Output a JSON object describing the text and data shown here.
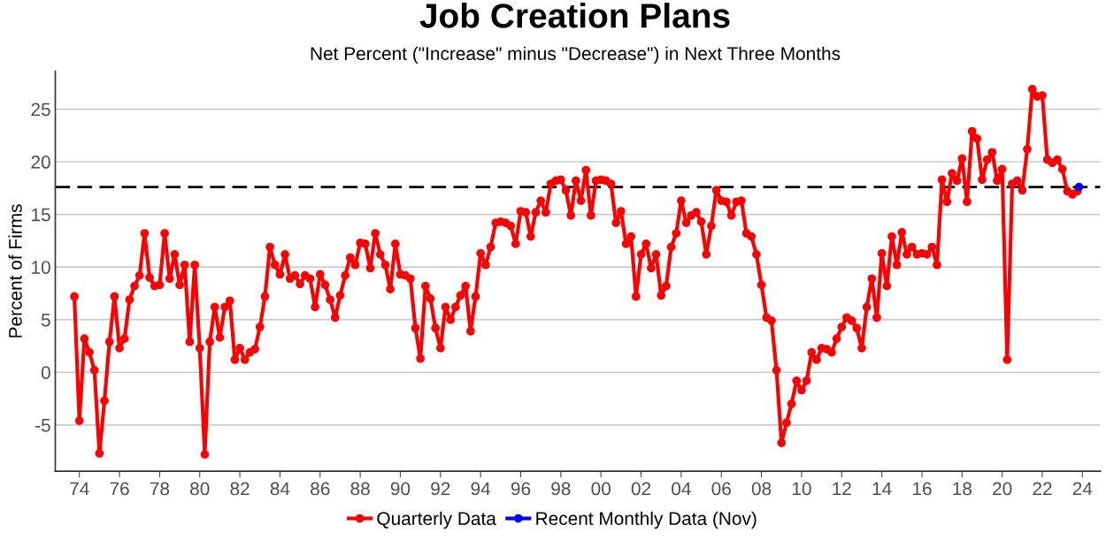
{
  "chart_data": {
    "type": "line",
    "title": "Job Creation Plans",
    "subtitle": "Net Percent (\"Increase\" minus \"Decrease\") in Next Three Months",
    "ylabel": "Percent of Firms",
    "x": [
      1973.75,
      1974.0,
      1974.25,
      1974.5,
      1974.75,
      1975.0,
      1975.25,
      1975.5,
      1975.75,
      1976.0,
      1976.25,
      1976.5,
      1976.75,
      1977.0,
      1977.25,
      1977.5,
      1977.75,
      1978.0,
      1978.25,
      1978.5,
      1978.75,
      1979.0,
      1979.25,
      1979.5,
      1979.75,
      1980.0,
      1980.25,
      1980.5,
      1980.75,
      1981.0,
      1981.25,
      1981.5,
      1981.75,
      1982.0,
      1982.25,
      1982.5,
      1982.75,
      1983.0,
      1983.25,
      1983.5,
      1983.75,
      1984.0,
      1984.25,
      1984.5,
      1984.75,
      1985.0,
      1985.25,
      1985.5,
      1985.75,
      1986.0,
      1986.25,
      1986.5,
      1986.75,
      1987.0,
      1987.25,
      1987.5,
      1987.75,
      1988.0,
      1988.25,
      1988.5,
      1988.75,
      1989.0,
      1989.25,
      1989.5,
      1989.75,
      1990.0,
      1990.25,
      1990.5,
      1990.75,
      1991.0,
      1991.25,
      1991.5,
      1991.75,
      1992.0,
      1992.25,
      1992.5,
      1992.75,
      1993.0,
      1993.25,
      1993.5,
      1993.75,
      1994.0,
      1994.25,
      1994.5,
      1994.75,
      1995.0,
      1995.25,
      1995.5,
      1995.75,
      1996.0,
      1996.25,
      1996.5,
      1996.75,
      1997.0,
      1997.25,
      1997.5,
      1997.75,
      1998.0,
      1998.25,
      1998.5,
      1998.75,
      1999.0,
      1999.25,
      1999.5,
      1999.75,
      2000.0,
      2000.25,
      2000.5,
      2000.75,
      2001.0,
      2001.25,
      2001.5,
      2001.75,
      2002.0,
      2002.25,
      2002.5,
      2002.75,
      2003.0,
      2003.25,
      2003.5,
      2003.75,
      2004.0,
      2004.25,
      2004.5,
      2004.75,
      2005.0,
      2005.25,
      2005.5,
      2005.75,
      2006.0,
      2006.25,
      2006.5,
      2006.75,
      2007.0,
      2007.25,
      2007.5,
      2007.75,
      2008.0,
      2008.25,
      2008.5,
      2008.75,
      2009.0,
      2009.25,
      2009.5,
      2009.75,
      2010.0,
      2010.25,
      2010.5,
      2010.75,
      2011.0,
      2011.25,
      2011.5,
      2011.75,
      2012.0,
      2012.25,
      2012.5,
      2012.75,
      2013.0,
      2013.25,
      2013.5,
      2013.75,
      2014.0,
      2014.25,
      2014.5,
      2014.75,
      2015.0,
      2015.25,
      2015.5,
      2015.75,
      2016.0,
      2016.25,
      2016.5,
      2016.75,
      2017.0,
      2017.25,
      2017.5,
      2017.75,
      2018.0,
      2018.25,
      2018.5,
      2018.75,
      2019.0,
      2019.25,
      2019.5,
      2019.75,
      2020.0,
      2020.25,
      2020.5,
      2020.75,
      2021.0,
      2021.25,
      2021.5,
      2021.75,
      2022.0,
      2022.25,
      2022.5,
      2022.75,
      2023.0,
      2023.25,
      2023.5,
      2023.75
    ],
    "series": [
      {
        "name": "Quarterly Data",
        "color": "#ff0000",
        "values": [
          7.2,
          -4.6,
          3.2,
          1.9,
          0.2,
          -7.7,
          -2.7,
          2.9,
          7.2,
          2.3,
          3.2,
          6.9,
          8.2,
          9.2,
          13.2,
          9.0,
          8.2,
          8.3,
          13.2,
          8.9,
          11.2,
          8.3,
          10.2,
          2.9,
          10.2,
          2.3,
          -7.8,
          2.9,
          6.2,
          3.3,
          6.2,
          6.8,
          1.2,
          2.3,
          1.2,
          1.9,
          2.2,
          4.3,
          7.2,
          11.9,
          10.2,
          9.3,
          11.2,
          8.9,
          9.2,
          8.4,
          9.2,
          8.9,
          6.2,
          9.3,
          8.3,
          6.9,
          5.2,
          7.3,
          9.2,
          10.9,
          10.2,
          12.3,
          12.2,
          9.9,
          13.2,
          11.2,
          10.2,
          7.9,
          12.2,
          9.3,
          9.2,
          8.9,
          4.2,
          1.3,
          8.2,
          7.0,
          4.2,
          2.3,
          6.2,
          5.0,
          6.2,
          7.3,
          8.2,
          3.9,
          7.2,
          11.3,
          10.2,
          11.9,
          14.2,
          14.3,
          14.2,
          13.9,
          12.2,
          15.3,
          15.2,
          12.9,
          15.2,
          16.3,
          15.2,
          17.9,
          18.2,
          18.3,
          17.3,
          14.9,
          18.2,
          16.3,
          19.2,
          14.9,
          18.2,
          18.3,
          18.2,
          17.9,
          14.2,
          15.3,
          12.2,
          12.9,
          7.2,
          11.2,
          12.2,
          9.9,
          11.2,
          7.3,
          8.2,
          11.9,
          13.2,
          16.3,
          14.2,
          14.9,
          15.2,
          14.3,
          11.2,
          13.9,
          17.3,
          16.3,
          16.2,
          14.9,
          16.2,
          16.3,
          13.2,
          12.9,
          11.2,
          8.3,
          5.2,
          4.9,
          0.2,
          -6.7,
          -4.8,
          -3.0,
          -0.8,
          -1.7,
          -0.8,
          1.9,
          1.2,
          2.3,
          2.2,
          1.9,
          3.2,
          4.3,
          5.2,
          4.9,
          4.2,
          2.3,
          6.2,
          8.9,
          5.2,
          11.3,
          8.2,
          12.9,
          10.2,
          13.3,
          11.2,
          11.9,
          11.2,
          11.3,
          11.2,
          11.9,
          10.2,
          18.3,
          16.2,
          18.9,
          18.2,
          20.3,
          16.2,
          22.9,
          22.2,
          18.3,
          20.2,
          20.9,
          18.2,
          19.3,
          1.2,
          17.9,
          18.2,
          17.3,
          21.2,
          26.9,
          26.2,
          26.3,
          20.2,
          19.9,
          20.2,
          19.3,
          17.2,
          16.9,
          17.2
        ]
      },
      {
        "name": "Recent Monthly Data (Nov)",
        "color": "#0000ff",
        "x": [
          2023.83
        ],
        "values": [
          17.6
        ]
      }
    ],
    "xlim": [
      1972.8,
      2024.9
    ],
    "ylim": [
      -9.4,
      28.6
    ],
    "xticks": [
      {
        "value": 1974,
        "label": "74"
      },
      {
        "value": 1976,
        "label": "76"
      },
      {
        "value": 1978,
        "label": "78"
      },
      {
        "value": 1980,
        "label": "80"
      },
      {
        "value": 1982,
        "label": "82"
      },
      {
        "value": 1984,
        "label": "84"
      },
      {
        "value": 1986,
        "label": "86"
      },
      {
        "value": 1988,
        "label": "88"
      },
      {
        "value": 1990,
        "label": "90"
      },
      {
        "value": 1992,
        "label": "92"
      },
      {
        "value": 1994,
        "label": "94"
      },
      {
        "value": 1996,
        "label": "96"
      },
      {
        "value": 1998,
        "label": "98"
      },
      {
        "value": 2000,
        "label": "00"
      },
      {
        "value": 2002,
        "label": "02"
      },
      {
        "value": 2004,
        "label": "04"
      },
      {
        "value": 2006,
        "label": "06"
      },
      {
        "value": 2008,
        "label": "08"
      },
      {
        "value": 2010,
        "label": "10"
      },
      {
        "value": 2012,
        "label": "12"
      },
      {
        "value": 2014,
        "label": "14"
      },
      {
        "value": 2016,
        "label": "16"
      },
      {
        "value": 2018,
        "label": "18"
      },
      {
        "value": 2020,
        "label": "20"
      },
      {
        "value": 2022,
        "label": "22"
      },
      {
        "value": 2024,
        "label": "24"
      }
    ],
    "yticks": [
      -5,
      0,
      5,
      10,
      15,
      20,
      25
    ],
    "ref_lines": [
      {
        "axis": "y",
        "value": 17.6,
        "color": "#000000",
        "line_style": "dashed"
      }
    ],
    "grid": "y",
    "legend": "bottom",
    "marker": "circle",
    "line_style": "solid"
  }
}
